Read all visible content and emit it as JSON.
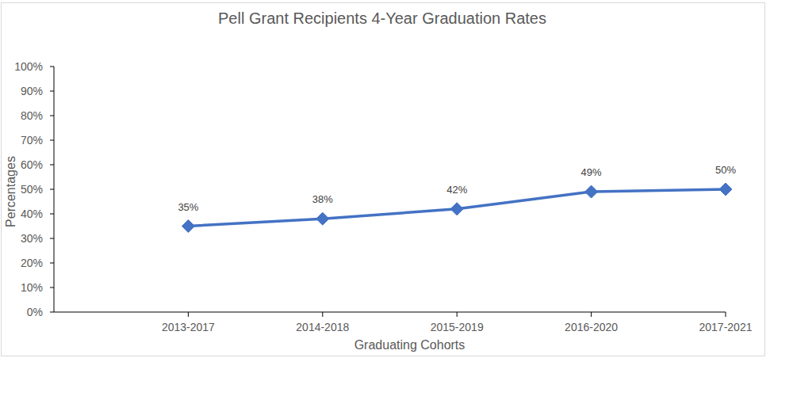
{
  "chart_data": {
    "type": "line",
    "title": "Pell Grant Recipients 4-Year Graduation Rates",
    "x_label": "Graduating Cohorts",
    "y_label": "Percentages",
    "categories": [
      "2013-2017",
      "2014-2018",
      "2015-2019",
      "2016-2020",
      "2017-2021"
    ],
    "values": [
      35,
      38,
      42,
      49,
      50
    ],
    "value_labels": [
      "35%",
      "38%",
      "42%",
      "49%",
      "50%"
    ],
    "color": "#4472c4",
    "marker": "diamond",
    "data_labels": true,
    "grid": false,
    "ylim": [
      0,
      100
    ],
    "yticks": [
      {
        "value": 0,
        "label": "0%"
      },
      {
        "value": 10,
        "label": "10%"
      },
      {
        "value": 20,
        "label": "20%"
      },
      {
        "value": 30,
        "label": "30%"
      },
      {
        "value": 40,
        "label": "40%"
      },
      {
        "value": 50,
        "label": "50%"
      },
      {
        "value": 60,
        "label": "60%"
      },
      {
        "value": 70,
        "label": "70%"
      },
      {
        "value": 80,
        "label": "80%"
      },
      {
        "value": 90,
        "label": "90%"
      },
      {
        "value": 100,
        "label": "100%"
      }
    ]
  }
}
